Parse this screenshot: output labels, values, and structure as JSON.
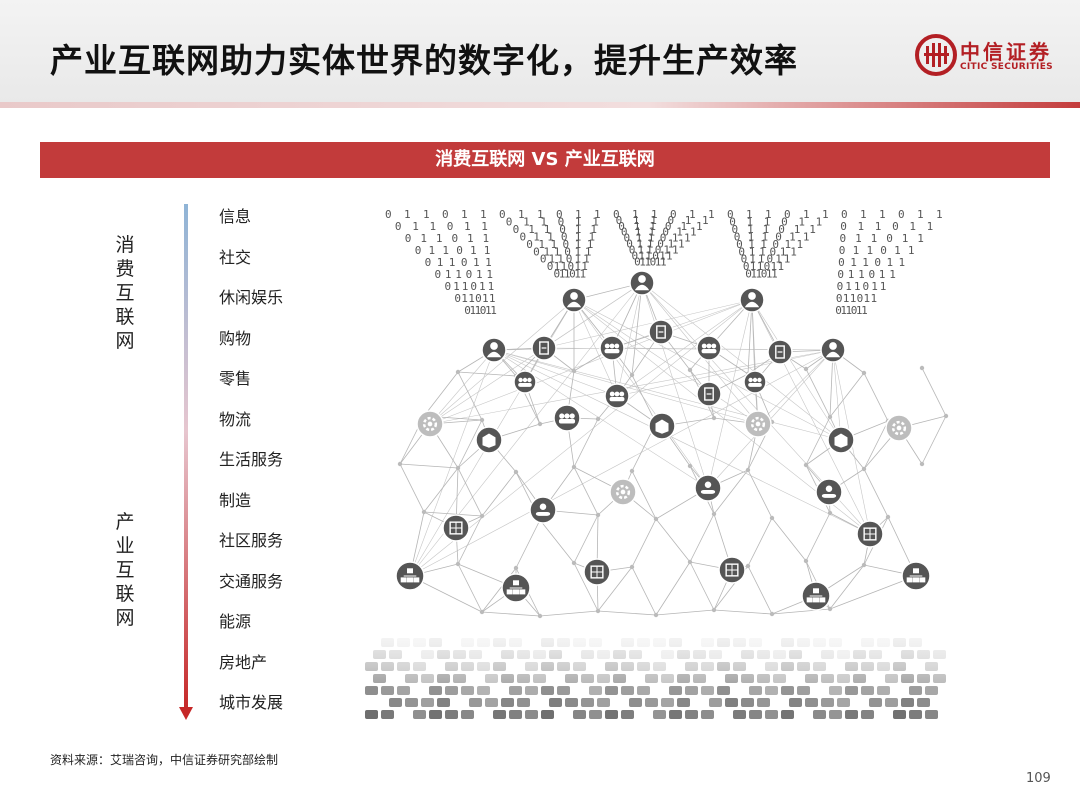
{
  "header": {
    "title": "产业互联网助力实体世界的数字化，提升生产效率",
    "logo_cn": "中信证券",
    "logo_en": "CITIC SECURITIES"
  },
  "banner": {
    "text": "消费互联网 VS 产业互联网"
  },
  "side_labels": {
    "top": "消费互联网",
    "bottom": "产业互联网"
  },
  "list": {
    "items": [
      "信息",
      "社交",
      "休闲娱乐",
      "购物",
      "零售",
      "物流",
      "生活服务",
      "制造",
      "社区服务",
      "交通服务",
      "能源",
      "房地产",
      "城市发展"
    ]
  },
  "footer": {
    "source": "资料来源：艾瑞咨询，中信证券研究部绘制",
    "page_number": "109"
  },
  "colors": {
    "accent": "#c23b3b",
    "brand": "#b31f24",
    "arrow_top": "#8fb4d6",
    "arrow_bottom": "#c62828"
  },
  "diagram": {
    "icons": [
      "user-icon",
      "document-icon",
      "group-icon",
      "gear-icon",
      "package-icon",
      "hand-coin-icon",
      "building-icon",
      "hierarchy-icon"
    ]
  }
}
